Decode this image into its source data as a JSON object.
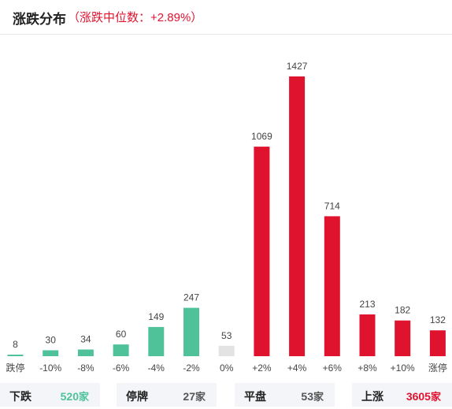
{
  "header": {
    "title": "涨跌分布",
    "subtitle": "（涨跌中位数：+2.89%）"
  },
  "colors": {
    "down": "#4fc29a",
    "flat": "#e3e3e3",
    "up": "#e0132e"
  },
  "chart_data": {
    "type": "bar",
    "categories": [
      "跌停",
      "-10%",
      "-8%",
      "-6%",
      "-4%",
      "-2%",
      "0%",
      "+2%",
      "+4%",
      "+6%",
      "+8%",
      "+10%",
      "涨停"
    ],
    "values": [
      8,
      30,
      34,
      60,
      149,
      247,
      53,
      1069,
      1427,
      714,
      213,
      182,
      132
    ],
    "bar_colors": [
      "down",
      "down",
      "down",
      "down",
      "down",
      "down",
      "flat",
      "up",
      "up",
      "up",
      "up",
      "up",
      "up"
    ],
    "title": "涨跌分布",
    "xlabel": "",
    "ylabel": "",
    "ylim": [
      0,
      1427
    ],
    "grid": false
  },
  "footer": {
    "stats": [
      {
        "label": "下跌",
        "value": "520",
        "unit": "家",
        "color": "#4fc29a"
      },
      {
        "label": "停牌",
        "value": "27",
        "unit": "家",
        "color": "#555555"
      },
      {
        "label": "平盘",
        "value": "53",
        "unit": "家",
        "color": "#555555"
      },
      {
        "label": "上涨",
        "value": "3605",
        "unit": "家",
        "color": "#e0132e"
      }
    ]
  }
}
